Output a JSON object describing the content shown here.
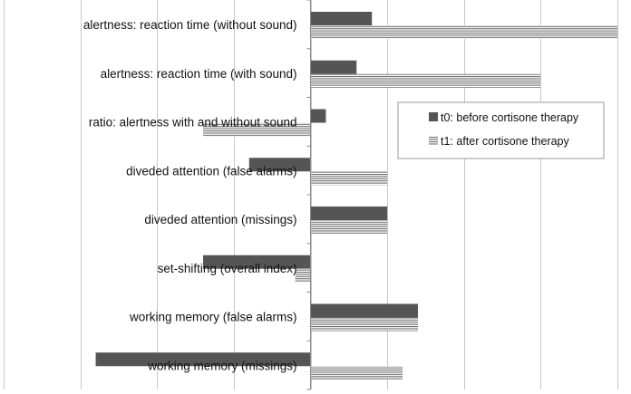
{
  "chart_data": {
    "type": "bar",
    "orientation": "horizontal",
    "title": "",
    "xlabel": "",
    "ylabel": "",
    "categories": [
      "alertness: reaction time (without sound)",
      "alertness: reaction time (with sound)",
      "ratio: alertness with and without sound",
      "diveded attention (false alarms)",
      "diveded attention (missings)",
      "set-shifting (overall index)",
      "working memory (false alarms)",
      "working memory (missings)"
    ],
    "series": [
      {
        "name": "t0: before cortisone therapy",
        "values": [
          8,
          6,
          2,
          -8,
          10,
          -14,
          14,
          -28
        ],
        "color": "#555555"
      },
      {
        "name": "t1: after cortisone therapy",
        "values": [
          40,
          30,
          -14,
          10,
          10,
          -2,
          14,
          12
        ],
        "color": "#777777",
        "pattern": "horizontal-lines"
      }
    ],
    "xlim": [
      -40,
      40
    ],
    "grid": true,
    "grid_step": 10,
    "legend_position": "right"
  }
}
